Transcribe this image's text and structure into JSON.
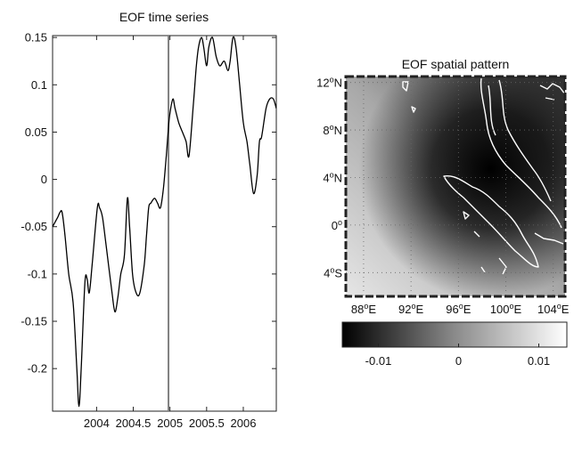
{
  "chart_data": [
    {
      "type": "line",
      "title": "EOF time series",
      "xlabel": "",
      "ylabel": "",
      "xlim": [
        2003.4,
        2006.45
      ],
      "ylim": [
        -0.245,
        0.152
      ],
      "x_ticks": [
        2004,
        2004.5,
        2005,
        2005.5,
        2006
      ],
      "x_tick_labels": [
        "2004",
        "2004.5",
        "2005",
        "2005.5",
        "2006"
      ],
      "y_ticks": [
        0.15,
        0.1,
        0.05,
        0,
        -0.05,
        -0.1,
        -0.15,
        -0.2
      ],
      "y_tick_labels": [
        "0.15",
        "0.1",
        "0.05",
        "0",
        "-0.05",
        "-0.1",
        "-0.15",
        "-0.2"
      ],
      "event_marker_x": 4.9801,
      "event_marker_color": "#808080",
      "line_color": "#000000",
      "grid": false,
      "series": [
        {
          "x": [
            2003.4,
            2003.47,
            2003.5,
            2003.53,
            2003.57,
            2003.62,
            2003.68,
            2003.73,
            2003.76,
            2003.79,
            2003.84,
            2003.87,
            2003.9,
            2003.94,
            2004.01,
            2004.04,
            2004.08,
            2004.13,
            2004.21,
            2004.25,
            2004.29,
            2004.33,
            2004.38,
            2004.42,
            2004.45,
            2004.49,
            2004.54,
            2004.59,
            2004.65,
            2004.68,
            2004.71,
            2004.74,
            2004.79,
            2004.83,
            2004.87,
            2004.91,
            2004.95,
            2004.98,
            2005.0,
            2005.04,
            2005.07,
            2005.12,
            2005.17,
            2005.22,
            2005.26,
            2005.32,
            2005.36,
            2005.39,
            2005.43,
            2005.46,
            2005.5,
            2005.53,
            2005.58,
            2005.63,
            2005.68,
            2005.74,
            2005.79,
            2005.82,
            2005.86,
            2005.9,
            2005.95,
            2006.0,
            2006.05,
            2006.09,
            2006.14,
            2006.19,
            2006.22,
            2006.25,
            2006.31,
            2006.36,
            2006.41,
            2006.45
          ],
          "y": [
            -0.05,
            -0.04,
            -0.035,
            -0.035,
            -0.06,
            -0.1,
            -0.13,
            -0.2,
            -0.24,
            -0.2,
            -0.11,
            -0.105,
            -0.12,
            -0.09,
            -0.03,
            -0.03,
            -0.04,
            -0.07,
            -0.12,
            -0.14,
            -0.125,
            -0.1,
            -0.08,
            -0.02,
            -0.05,
            -0.1,
            -0.12,
            -0.12,
            -0.09,
            -0.06,
            -0.03,
            -0.025,
            -0.02,
            -0.025,
            -0.03,
            -0.01,
            0.025,
            0.055,
            0.07,
            0.085,
            0.075,
            0.06,
            0.05,
            0.04,
            0.025,
            0.08,
            0.12,
            0.14,
            0.15,
            0.14,
            0.12,
            0.14,
            0.15,
            0.13,
            0.12,
            0.125,
            0.115,
            0.125,
            0.15,
            0.14,
            0.1,
            0.06,
            0.04,
            0.015,
            -0.015,
            0.005,
            0.04,
            0.045,
            0.075,
            0.085,
            0.085,
            0.075
          ]
        }
      ]
    },
    {
      "type": "heatmap",
      "title": "EOF spatial pattern",
      "xlabel": "",
      "ylabel": "",
      "xlim": [
        86.5,
        105
      ],
      "ylim": [
        -6,
        12.5
      ],
      "x_ticks": [
        88,
        92,
        96,
        100,
        104
      ],
      "x_tick_labels": [
        "88°E",
        "92°E",
        "96°E",
        "100°E",
        "104°E"
      ],
      "y_ticks": [
        12,
        8,
        4,
        0,
        -4
      ],
      "y_tick_labels": [
        "12°N",
        "8°N",
        "4°N",
        "0°",
        "4°S"
      ],
      "grid": true,
      "colormap": "gray",
      "colorbar": {
        "range": [
          -0.0145,
          0.0135
        ],
        "ticks": [
          -0.01,
          0,
          0.01
        ],
        "tick_labels": [
          "-0.01",
          "0",
          "0.01"
        ]
      },
      "coastline_color": "#ffffff"
    }
  ]
}
